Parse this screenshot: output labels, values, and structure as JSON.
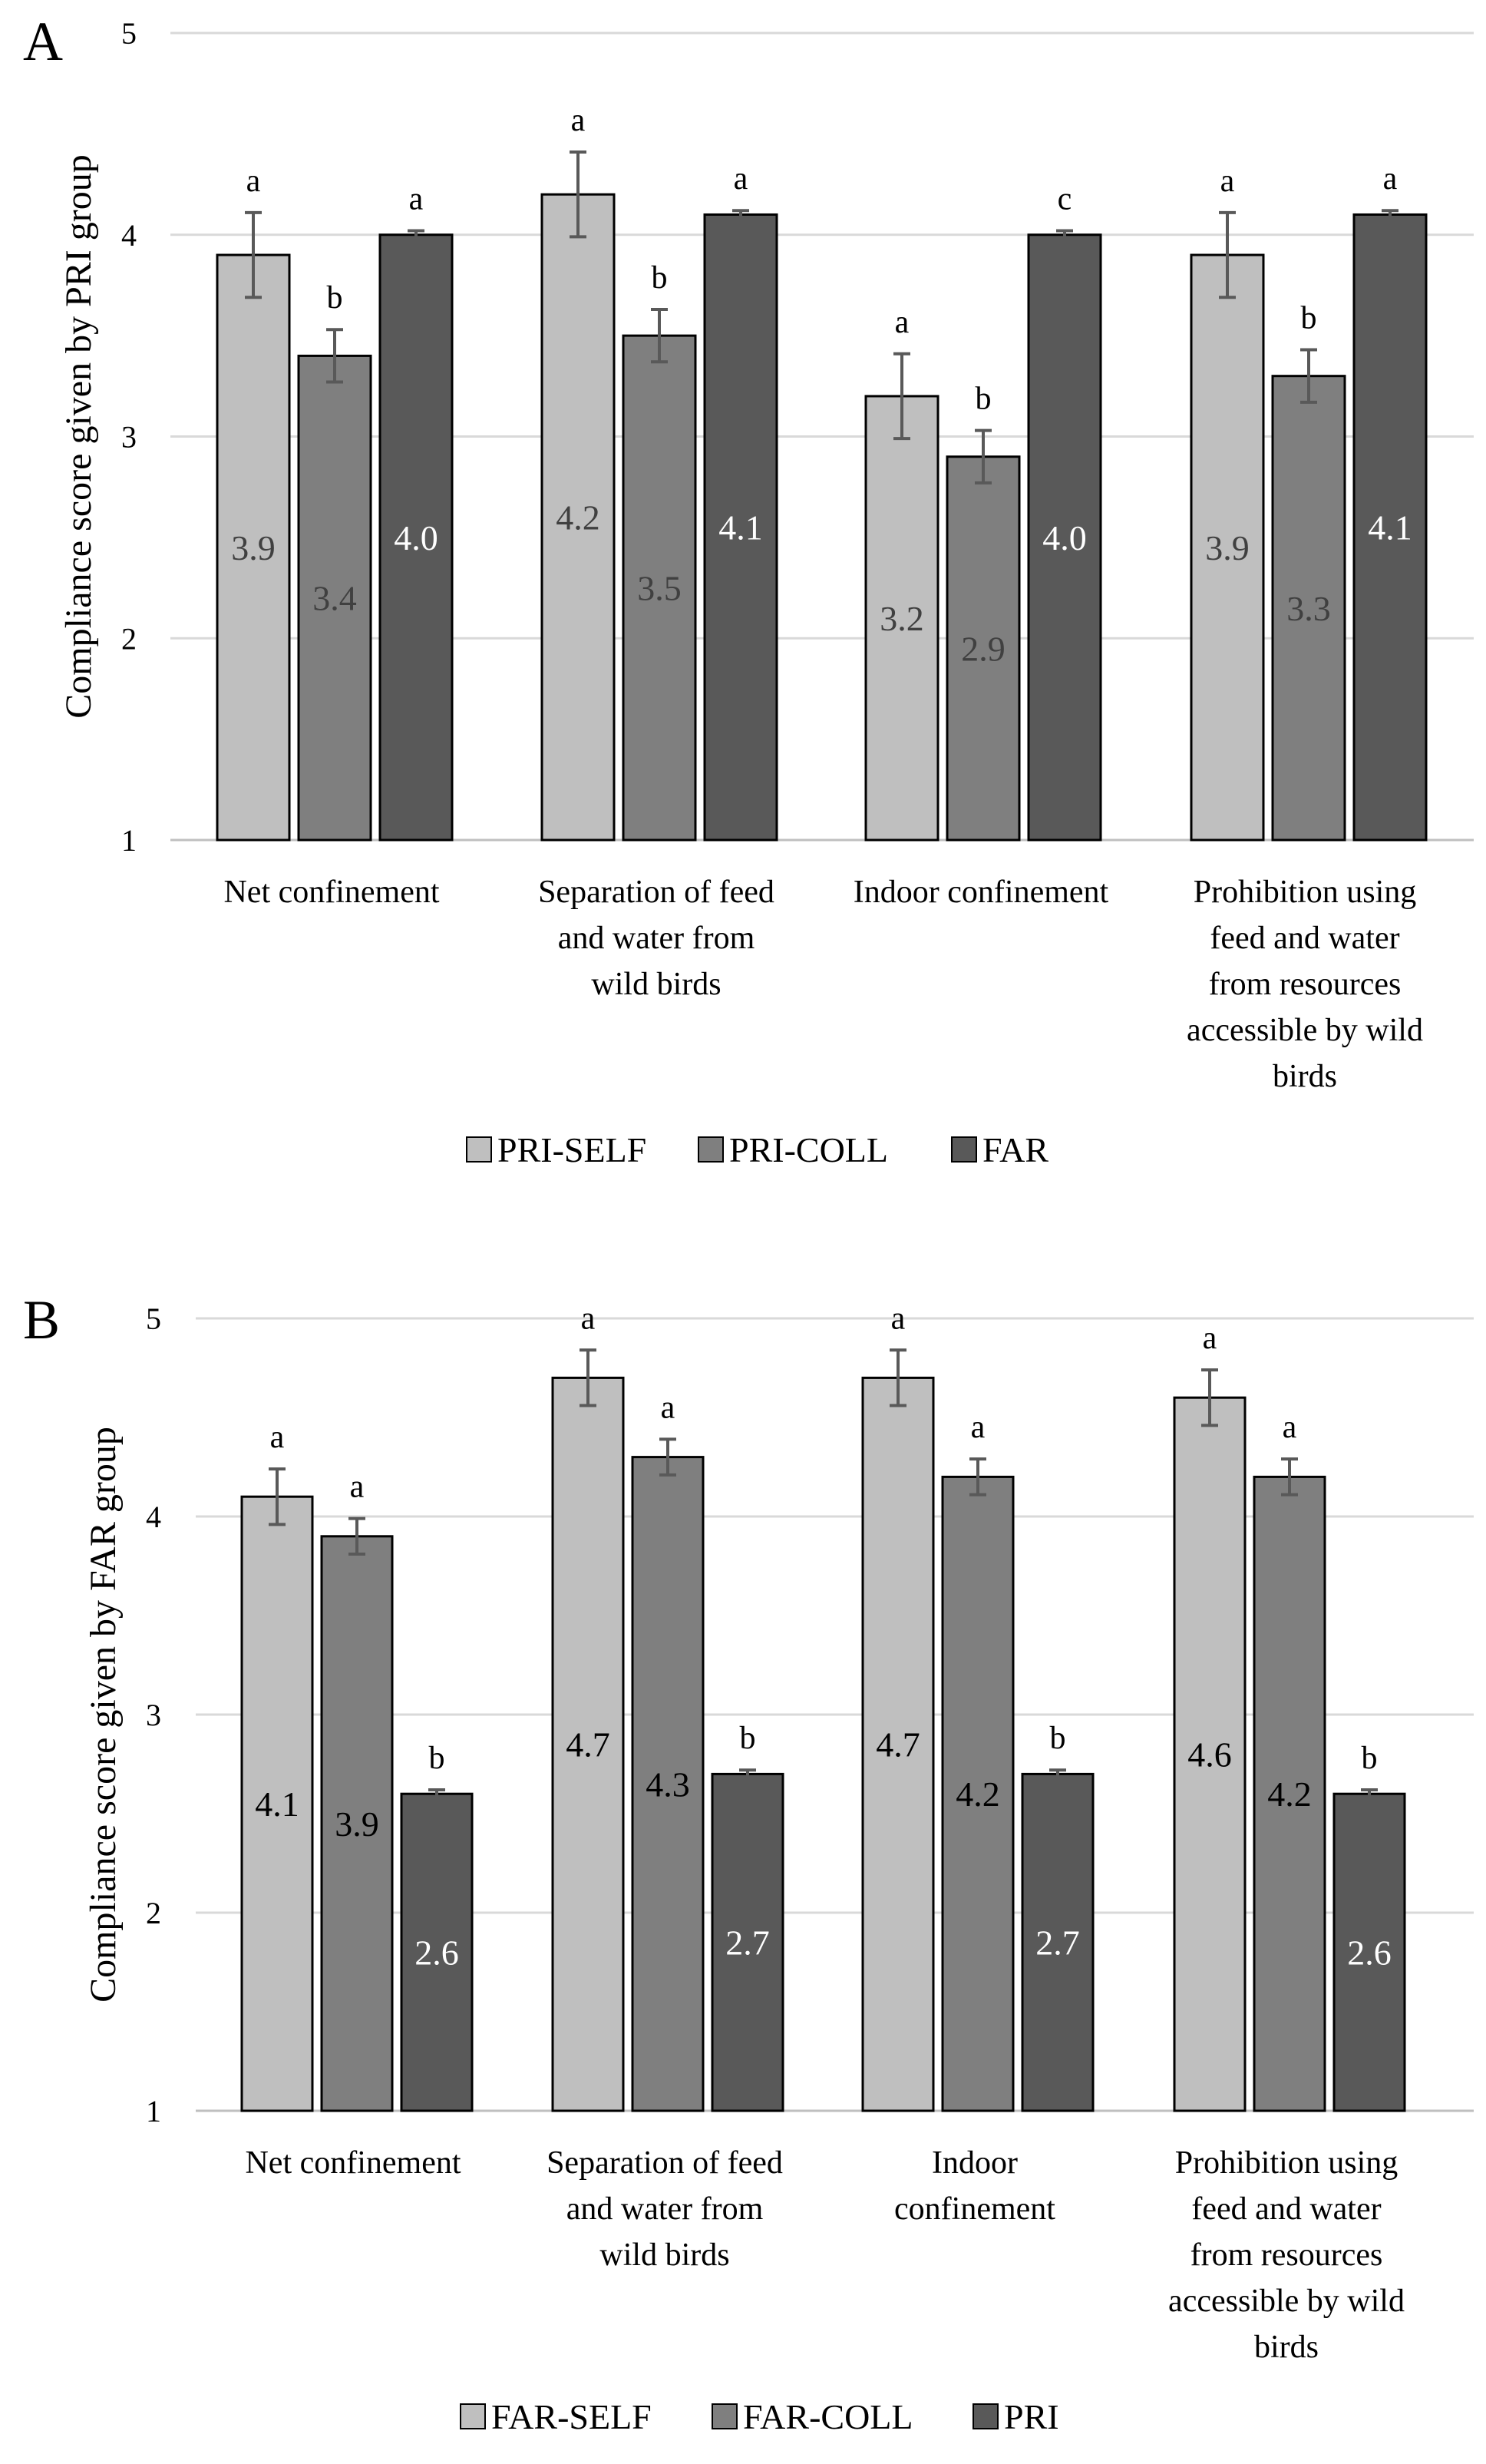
{
  "chart_data": [
    {
      "type": "bar",
      "panel": "A",
      "ylabel": "Compliance score given by PRI group",
      "ylim": [
        1,
        5
      ],
      "yticks": [
        "1",
        "2",
        "3",
        "4",
        "5"
      ],
      "categories": [
        [
          "Net confinement"
        ],
        [
          "Separation of feed",
          "and water from",
          "wild birds"
        ],
        [
          "Indoor confinement"
        ],
        [
          "Prohibition using",
          "feed and water",
          "from resources",
          "accessible by wild",
          "birds"
        ]
      ],
      "series": [
        {
          "name": "PRI-SELF",
          "color": "#bfbfbf",
          "label_color": "#404040",
          "values": [
            3.9,
            4.2,
            3.2,
            3.9
          ],
          "labels": [
            "3.9",
            "4.2",
            "3.2",
            "3.9"
          ],
          "errors": [
            0.21,
            0.21,
            0.21,
            0.21
          ],
          "sig": [
            "a",
            "a",
            "a",
            "a"
          ]
        },
        {
          "name": "PRI-COLL",
          "color": "#7f7f7f",
          "label_color": "#404040",
          "values": [
            3.4,
            3.5,
            2.9,
            3.3
          ],
          "labels": [
            "3.4",
            "3.5",
            "2.9",
            "3.3"
          ],
          "errors": [
            0.13,
            0.13,
            0.13,
            0.13
          ],
          "sig": [
            "b",
            "b",
            "b",
            "b"
          ]
        },
        {
          "name": "FAR",
          "color": "#595959",
          "label_color": "#ffffff",
          "values": [
            4.0,
            4.1,
            4.0,
            4.1
          ],
          "labels": [
            "4.0",
            "4.1",
            "4.0",
            "4.1"
          ],
          "errors": [
            0.02,
            0.02,
            0.02,
            0.02
          ],
          "sig": [
            "a",
            "a",
            "c",
            "a"
          ]
        }
      ]
    },
    {
      "type": "bar",
      "panel": "B",
      "ylabel": "Compliance score given by FAR group",
      "ylim": [
        1,
        5
      ],
      "yticks": [
        "1",
        "2",
        "3",
        "4",
        "5"
      ],
      "categories": [
        [
          "Net confinement"
        ],
        [
          "Separation of feed",
          "and water from",
          "wild birds"
        ],
        [
          "Indoor",
          "confinement"
        ],
        [
          "Prohibition using",
          "feed and water",
          "from resources",
          "accessible by wild",
          "birds"
        ]
      ],
      "series": [
        {
          "name": "FAR-SELF",
          "color": "#bfbfbf",
          "label_color": "#000000",
          "values": [
            4.1,
            4.7,
            4.7,
            4.6
          ],
          "labels": [
            "4.1",
            "4.7",
            "4.7",
            "4.6"
          ],
          "errors": [
            0.14,
            0.14,
            0.14,
            0.14
          ],
          "sig": [
            "a",
            "a",
            "a",
            "a"
          ]
        },
        {
          "name": "FAR-COLL",
          "color": "#7f7f7f",
          "label_color": "#000000",
          "values": [
            3.9,
            4.3,
            4.2,
            4.2
          ],
          "labels": [
            "3.9",
            "4.3",
            "4.2",
            "4.2"
          ],
          "errors": [
            0.09,
            0.09,
            0.09,
            0.09
          ],
          "sig": [
            "a",
            "a",
            "a",
            "a"
          ]
        },
        {
          "name": "PRI",
          "color": "#595959",
          "label_color": "#ffffff",
          "values": [
            2.6,
            2.7,
            2.7,
            2.6
          ],
          "labels": [
            "2.6",
            "2.7",
            "2.7",
            "2.6"
          ],
          "errors": [
            0.02,
            0.02,
            0.02,
            0.02
          ],
          "sig": [
            "b",
            "b",
            "b",
            "b"
          ]
        }
      ]
    }
  ]
}
